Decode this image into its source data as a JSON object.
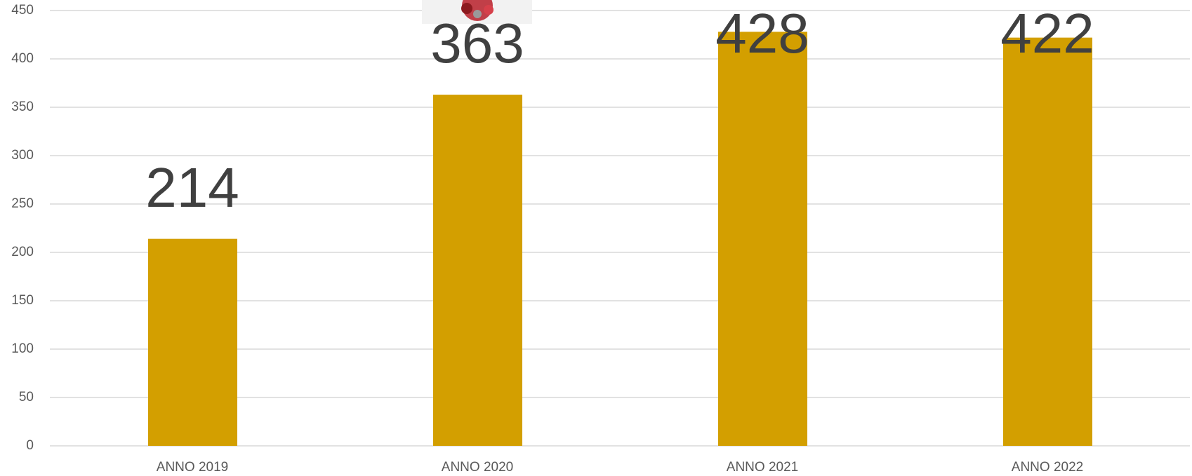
{
  "chart_data": {
    "type": "bar",
    "categories": [
      "ANNO 2019",
      "ANNO 2020",
      "ANNO 2021",
      "ANNO 2022"
    ],
    "values": [
      214,
      363,
      428,
      422
    ],
    "color": "#d39f00",
    "ylim": [
      0,
      450
    ],
    "yticks": [
      0,
      50,
      100,
      150,
      200,
      250,
      300,
      350,
      400,
      450
    ],
    "grid": true
  }
}
